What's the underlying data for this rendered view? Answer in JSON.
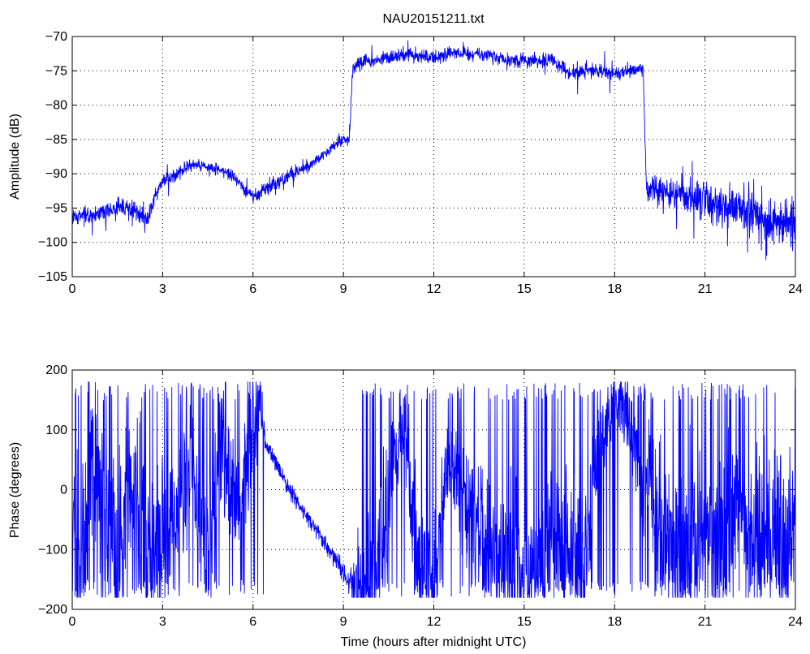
{
  "chart_data": [
    {
      "type": "line",
      "title": "NAU20151211.txt",
      "xlabel": "",
      "ylabel": "Amplitude (dB)",
      "xlim": [
        0,
        24
      ],
      "ylim": [
        -105,
        -70
      ],
      "xticks": [
        0,
        3,
        6,
        9,
        12,
        15,
        18,
        21,
        24
      ],
      "yticks": [
        -105,
        -100,
        -95,
        -90,
        -85,
        -80,
        -75,
        -70
      ],
      "xtick_labels": [
        "0",
        "3",
        "6",
        "9",
        "12",
        "15",
        "18",
        "21",
        "24"
      ],
      "ytick_labels": [
        "−105",
        "−100",
        "−95",
        "−90",
        "−85",
        "−80",
        "−75",
        "−70"
      ],
      "grid": true,
      "line_color": "#0000ff",
      "series": [
        {
          "x": [
            0,
            0.5,
            1.0,
            1.5,
            2.0,
            2.5,
            2.7,
            3.0,
            3.5,
            4.0,
            4.5,
            5.0,
            5.5,
            6.0,
            6.5,
            7.0,
            7.5,
            8.0,
            8.5,
            9.0,
            9.2,
            9.3,
            9.5,
            10.0,
            10.5,
            11.0,
            11.5,
            12.0,
            12.5,
            13.0,
            13.5,
            14.0,
            14.5,
            15.0,
            15.5,
            16.0,
            16.5,
            17.0,
            17.5,
            18.0,
            18.5,
            18.95,
            19.05,
            19.5,
            20.0,
            20.5,
            21.0,
            21.5,
            22.0,
            22.5,
            23.0,
            23.5,
            24.0
          ],
          "y": [
            -96.5,
            -96,
            -95.5,
            -95,
            -95,
            -96.5,
            -94,
            -91,
            -90,
            -88.5,
            -89,
            -89.5,
            -91,
            -93.5,
            -92,
            -90.5,
            -89.5,
            -88.5,
            -86.5,
            -85,
            -85,
            -75,
            -73.5,
            -73.5,
            -73,
            -72.5,
            -73,
            -73,
            -72.5,
            -72.5,
            -72.5,
            -73,
            -73.5,
            -73.5,
            -73.5,
            -73.5,
            -75.5,
            -75,
            -75,
            -75.5,
            -75,
            -74.5,
            -92,
            -92.5,
            -93,
            -93.5,
            -94,
            -94.5,
            -95,
            -95.5,
            -96.5,
            -97,
            -97.5
          ],
          "noise": [
            1.2,
            1.2,
            1.2,
            1.2,
            1.3,
            1.3,
            1.2,
            1.0,
            1.0,
            0.8,
            0.8,
            0.8,
            0.8,
            1.0,
            1.0,
            1.0,
            0.9,
            0.8,
            0.7,
            0.7,
            0.7,
            1.2,
            1.0,
            0.9,
            0.9,
            0.9,
            0.9,
            0.9,
            0.9,
            0.9,
            0.9,
            0.9,
            0.9,
            0.9,
            0.9,
            1.0,
            1.0,
            1.0,
            1.0,
            1.0,
            1.0,
            1.0,
            2.0,
            2.0,
            2.2,
            2.4,
            2.6,
            2.8,
            3.0,
            3.0,
            3.0,
            3.0,
            3.0
          ]
        }
      ]
    },
    {
      "type": "line",
      "title": "",
      "xlabel": "Time (hours after midnight UTC)",
      "ylabel": "Phase (degrees)",
      "xlim": [
        0,
        24
      ],
      "ylim": [
        -200,
        200
      ],
      "xticks": [
        0,
        3,
        6,
        9,
        12,
        15,
        18,
        21,
        24
      ],
      "yticks": [
        -200,
        -100,
        0,
        100,
        200
      ],
      "xtick_labels": [
        "0",
        "3",
        "6",
        "9",
        "12",
        "15",
        "18",
        "21",
        "24"
      ],
      "ytick_labels": [
        "−200",
        "−100",
        "0",
        "100",
        "200"
      ],
      "grid": true,
      "line_color": "#0000ff",
      "series": [
        {
          "x": [
            0,
            0.3,
            0.6,
            1.0,
            1.5,
            2.0,
            2.5,
            3.0,
            3.5,
            4.0,
            4.5,
            5.0,
            5.5,
            6.0,
            6.2,
            6.4,
            6.8,
            7.2,
            7.6,
            8.0,
            8.4,
            8.8,
            9.2,
            9.5,
            9.8,
            10.2,
            10.6,
            11.0,
            11.5,
            12.0,
            12.5,
            13.0,
            13.5,
            14.0,
            14.5,
            15.0,
            15.5,
            16.0,
            16.5,
            17.0,
            17.5,
            18.0,
            18.5,
            19.0,
            19.5,
            20.0,
            20.5,
            21.0,
            21.5,
            22.0,
            22.5,
            23.0,
            23.5,
            24.0
          ],
          "y": [
            -40,
            -120,
            60,
            -20,
            -100,
            40,
            -120,
            -60,
            -40,
            50,
            -110,
            60,
            -40,
            120,
            150,
            80,
            40,
            0,
            -30,
            -60,
            -90,
            -120,
            -160,
            -170,
            -140,
            -90,
            20,
            120,
            -110,
            -150,
            60,
            -20,
            -60,
            -90,
            -120,
            -140,
            -120,
            -90,
            -100,
            -120,
            80,
            150,
            120,
            30,
            -20,
            -100,
            -80,
            -60,
            -110,
            -40,
            -80,
            -100,
            -60,
            -100
          ],
          "wrap": [
            true,
            true,
            true,
            true,
            true,
            true,
            true,
            true,
            true,
            true,
            true,
            true,
            true,
            true,
            true,
            false,
            false,
            false,
            false,
            false,
            false,
            false,
            false,
            true,
            true,
            true,
            true,
            true,
            true,
            true,
            true,
            true,
            true,
            true,
            true,
            true,
            true,
            true,
            true,
            true,
            true,
            true,
            true,
            true,
            true,
            true,
            true,
            true,
            true,
            true,
            true,
            true,
            true,
            true
          ],
          "noise": [
            130,
            130,
            130,
            130,
            130,
            130,
            130,
            120,
            120,
            110,
            120,
            100,
            100,
            110,
            60,
            14,
            12,
            12,
            12,
            12,
            12,
            14,
            16,
            90,
            100,
            100,
            90,
            70,
            100,
            110,
            60,
            80,
            90,
            100,
            110,
            100,
            100,
            100,
            110,
            120,
            60,
            40,
            60,
            110,
            120,
            130,
            130,
            120,
            130,
            130,
            130,
            130,
            130,
            130
          ]
        }
      ]
    }
  ]
}
